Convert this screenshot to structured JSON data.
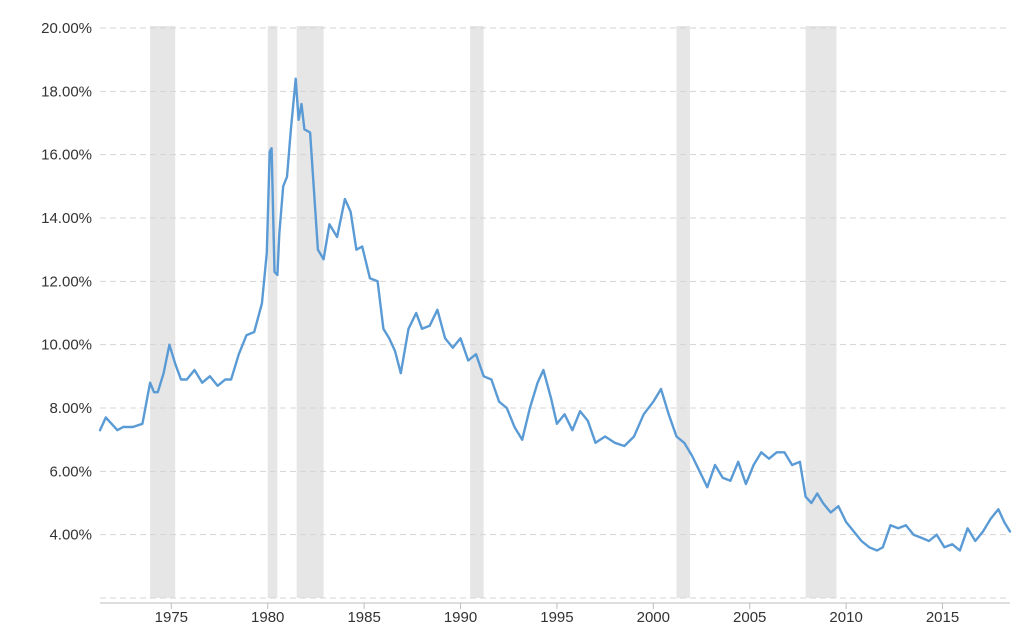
{
  "chart_data": {
    "type": "line",
    "title": "",
    "xlabel": "",
    "ylabel": "",
    "y_ticks": [
      "4.00%",
      "6.00%",
      "8.00%",
      "10.00%",
      "12.00%",
      "14.00%",
      "16.00%",
      "18.00%",
      "20.00%"
    ],
    "x_ticks": [
      "1975",
      "1980",
      "1985",
      "1990",
      "1995",
      "2000",
      "2005",
      "2010",
      "2015"
    ],
    "ylim": [
      2.0,
      20.0
    ],
    "xlim": [
      1971.3,
      2018.5
    ],
    "grid": true,
    "shaded_periods": [
      {
        "start": 1973.9,
        "end": 1975.2
      },
      {
        "start": 1980.0,
        "end": 1980.5
      },
      {
        "start": 1981.5,
        "end": 1982.9
      },
      {
        "start": 1990.5,
        "end": 1991.2
      },
      {
        "start": 2001.2,
        "end": 2001.9
      },
      {
        "start": 2007.9,
        "end": 2009.5
      }
    ],
    "series": [
      {
        "color": "#5b9bd5",
        "x": [
          1971.3,
          1971.6,
          1971.9,
          1972.2,
          1972.5,
          1973.0,
          1973.5,
          1973.9,
          1974.1,
          1974.3,
          1974.6,
          1974.9,
          1975.2,
          1975.5,
          1975.8,
          1976.2,
          1976.6,
          1977.0,
          1977.4,
          1977.8,
          1978.1,
          1978.5,
          1978.9,
          1979.3,
          1979.7,
          1979.95,
          1980.1,
          1980.2,
          1980.35,
          1980.5,
          1980.6,
          1980.8,
          1981.0,
          1981.2,
          1981.45,
          1981.6,
          1981.75,
          1981.9,
          1982.2,
          1982.6,
          1982.9,
          1983.2,
          1983.6,
          1984.0,
          1984.3,
          1984.6,
          1984.9,
          1985.3,
          1985.7,
          1986.0,
          1986.3,
          1986.6,
          1986.9,
          1987.3,
          1987.7,
          1988.0,
          1988.4,
          1988.8,
          1989.2,
          1989.6,
          1990.0,
          1990.4,
          1990.8,
          1991.2,
          1991.6,
          1992.0,
          1992.4,
          1992.8,
          1993.2,
          1993.6,
          1994.0,
          1994.3,
          1994.7,
          1995.0,
          1995.4,
          1995.8,
          1996.2,
          1996.6,
          1997.0,
          1997.5,
          1998.0,
          1998.5,
          1999.0,
          1999.5,
          2000.0,
          2000.4,
          2000.8,
          2001.2,
          2001.6,
          2002.0,
          2002.4,
          2002.8,
          2003.2,
          2003.6,
          2004.0,
          2004.4,
          2004.8,
          2005.2,
          2005.6,
          2006.0,
          2006.4,
          2006.8,
          2007.2,
          2007.6,
          2007.9,
          2008.2,
          2008.5,
          2008.8,
          2009.2,
          2009.6,
          2010.0,
          2010.4,
          2010.8,
          2011.2,
          2011.6,
          2011.9,
          2012.3,
          2012.7,
          2013.1,
          2013.5,
          2013.9,
          2014.3,
          2014.7,
          2015.1,
          2015.5,
          2015.9,
          2016.3,
          2016.7,
          2017.1,
          2017.5,
          2017.9,
          2018.2,
          2018.5
        ],
        "y": [
          7.3,
          7.7,
          7.5,
          7.3,
          7.4,
          7.4,
          7.5,
          8.8,
          8.5,
          8.5,
          9.1,
          10.0,
          9.4,
          8.9,
          8.9,
          9.2,
          8.8,
          9.0,
          8.7,
          8.9,
          8.9,
          9.7,
          10.3,
          10.4,
          11.3,
          12.9,
          16.1,
          16.2,
          12.3,
          12.2,
          13.5,
          15.0,
          15.3,
          16.8,
          18.4,
          17.1,
          17.6,
          16.8,
          16.7,
          13.0,
          12.7,
          13.8,
          13.4,
          14.6,
          14.2,
          13.0,
          13.1,
          12.1,
          12.0,
          10.5,
          10.2,
          9.8,
          9.1,
          10.5,
          11.0,
          10.5,
          10.6,
          11.1,
          10.2,
          9.9,
          10.2,
          9.5,
          9.7,
          9.0,
          8.9,
          8.2,
          8.0,
          7.4,
          7.0,
          8.0,
          8.8,
          9.2,
          8.3,
          7.5,
          7.8,
          7.3,
          7.9,
          7.6,
          6.9,
          7.1,
          6.9,
          6.8,
          7.1,
          7.8,
          8.2,
          8.6,
          7.8,
          7.1,
          6.9,
          6.5,
          6.0,
          5.5,
          6.2,
          5.8,
          5.7,
          6.3,
          5.6,
          6.2,
          6.6,
          6.4,
          6.6,
          6.6,
          6.2,
          6.3,
          5.2,
          5.0,
          5.3,
          5.0,
          4.7,
          4.9,
          4.4,
          4.1,
          3.8,
          3.6,
          3.5,
          3.6,
          4.3,
          4.2,
          4.3,
          4.0,
          3.9,
          3.8,
          4.0,
          3.6,
          3.7,
          3.5,
          4.2,
          3.8,
          4.1,
          4.5,
          4.8,
          4.4,
          4.1
        ]
      }
    ]
  }
}
